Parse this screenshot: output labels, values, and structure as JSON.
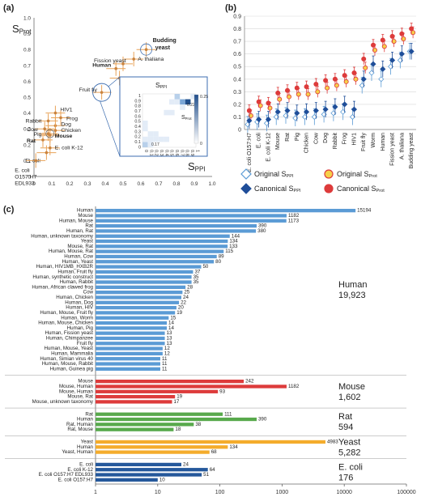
{
  "panel_labels": {
    "a": "(a)",
    "b": "(b)",
    "c": "(c)"
  },
  "colors": {
    "orange": "#e8a257",
    "scatter_point": "#c9833f",
    "blue": "#4d86c6",
    "red": "#dd3b3b",
    "green": "#58a94c",
    "yellow": "#f4ac2c",
    "navy": "#25589b",
    "light_blue": "#5b9bd5",
    "heat": [
      "#ffffff",
      "#e3ecf7",
      "#b8d0ea",
      "#7aa6d6",
      "#3e78bc",
      "#1f4e8c"
    ]
  },
  "chart_data": [
    {
      "id": "a",
      "type": "scatter",
      "xlabel": "S",
      "xlabel_sub": "PPI",
      "ylabel": "S",
      "ylabel_sub": "Prot",
      "xlim": [
        0,
        1.0
      ],
      "ylim": [
        0,
        1.0
      ],
      "xticks": [
        "0",
        "0.1",
        "0.2",
        "0.3",
        "0.4",
        "0.5",
        "0.6",
        "0.7",
        "0.8",
        "0.9",
        "1.0"
      ],
      "yticks": [
        "0",
        "0.1",
        "0.2",
        "0.3",
        "0.4",
        "0.5",
        "0.6",
        "0.7",
        "0.8",
        "0.9",
        "1.0"
      ],
      "points": [
        {
          "label": "Budding yeast",
          "x": 0.63,
          "y": 0.8,
          "bold": true
        },
        {
          "label": "A. thaliana",
          "x": 0.56,
          "y": 0.74,
          "bold": false
        },
        {
          "label": "Fission yeast",
          "x": 0.5,
          "y": 0.71,
          "bold": false
        },
        {
          "label": "Human",
          "x": 0.46,
          "y": 0.68,
          "bold": true
        },
        {
          "label": "Worm",
          "x": 0.48,
          "y": 0.62,
          "bold": false
        },
        {
          "label": "Fruit fly",
          "x": 0.38,
          "y": 0.53,
          "bold": false
        },
        {
          "label": "HIV1",
          "x": 0.12,
          "y": 0.4,
          "bold": false
        },
        {
          "label": "Frog",
          "x": 0.15,
          "y": 0.37,
          "bold": false
        },
        {
          "label": "Rabbit",
          "x": 0.08,
          "y": 0.35,
          "bold": false
        },
        {
          "label": "Dog",
          "x": 0.12,
          "y": 0.32,
          "bold": false
        },
        {
          "label": "Chicken",
          "x": 0.12,
          "y": 0.29,
          "bold": false
        },
        {
          "label": "Cow",
          "x": 0.06,
          "y": 0.3,
          "bold": false
        },
        {
          "label": "Mouse",
          "x": 0.09,
          "y": 0.26,
          "bold": true
        },
        {
          "label": "Pig",
          "x": 0.08,
          "y": 0.27,
          "bold": false
        },
        {
          "label": "Rat",
          "x": 0.05,
          "y": 0.23,
          "bold": true
        },
        {
          "label": "E. coli K-12",
          "x": 0.09,
          "y": 0.18,
          "bold": false
        },
        {
          "label": "E. coli",
          "x": 0.07,
          "y": 0.15,
          "bold": false
        },
        {
          "label": "E. coli O157:H7 EDL933",
          "x": 0.01,
          "y": 0.1,
          "bold": false
        }
      ],
      "inset": {
        "title": "S",
        "title_sub": "PPI",
        "side_label": "S",
        "side_label_sub": "Prot",
        "axis_ticks": [
          "0",
          "0.1",
          "0.2",
          "0.3",
          "0.4",
          "0.5",
          "0.6",
          "0.7",
          "0.8",
          "0.9",
          "1"
        ],
        "colorbar_max": "0.25",
        "colorbar_min": "0",
        "annot_a": "0.22",
        "annot_b": "0.17"
      }
    },
    {
      "id": "b",
      "type": "scatter",
      "ylim": [
        0,
        0.9
      ],
      "yticks": [
        "0",
        "0.1",
        "0.2",
        "0.3",
        "0.4",
        "0.5",
        "0.6",
        "0.7",
        "0.8",
        "0.9"
      ],
      "categories": [
        "E. coli O157:H7",
        "E. coli",
        "E. coli K-12",
        "Mouse",
        "Rat",
        "Pig",
        "Chicken",
        "Cow",
        "Dog",
        "Rabbit",
        "Frog",
        "HIV1",
        "Fruit fly",
        "Worm",
        "Human",
        "Fission yeast",
        "A. thaliana",
        "Budding yeast"
      ],
      "series": [
        {
          "name": "Original S",
          "name_sub": "PPI",
          "values": [
            0.04,
            0.06,
            0.05,
            0.1,
            0.11,
            0.09,
            0.1,
            0.1,
            0.12,
            0.13,
            0.14,
            0.1,
            0.35,
            0.45,
            0.4,
            0.5,
            0.55,
            0.62
          ]
        },
        {
          "name": "Original S",
          "name_sub": "Prot",
          "values": [
            0.11,
            0.19,
            0.17,
            0.24,
            0.26,
            0.28,
            0.28,
            0.3,
            0.33,
            0.35,
            0.38,
            0.4,
            0.49,
            0.63,
            0.66,
            0.7,
            0.72,
            0.77
          ]
        },
        {
          "name": "Canonical S",
          "name_sub": "PPI",
          "values": [
            0.07,
            0.08,
            0.08,
            0.14,
            0.15,
            0.13,
            0.14,
            0.15,
            0.16,
            0.18,
            0.2,
            0.16,
            0.4,
            0.52,
            0.48,
            0.55,
            0.6,
            0.62
          ]
        },
        {
          "name": "Canonical S",
          "name_sub": "Prot",
          "values": [
            0.15,
            0.22,
            0.21,
            0.29,
            0.31,
            0.33,
            0.34,
            0.36,
            0.39,
            0.4,
            0.43,
            0.45,
            0.56,
            0.67,
            0.71,
            0.74,
            0.76,
            0.8
          ]
        }
      ]
    },
    {
      "id": "c",
      "type": "bar",
      "scale": "log",
      "xlim": [
        1,
        100000
      ],
      "xticks": [
        "1",
        "10",
        "100",
        "1000",
        "10000",
        "100000"
      ],
      "groups": [
        {
          "name": "Human",
          "total": "19,923",
          "color": "#5b9bd5",
          "bars": [
            [
              "Human",
              15194
            ],
            [
              "Mouse",
              1182
            ],
            [
              "Human, Mouse",
              1173
            ],
            [
              "Rat",
              390
            ],
            [
              "Human, Rat",
              380
            ],
            [
              "Human, unknown taxonomy",
              144
            ],
            [
              "Yeast",
              134
            ],
            [
              "Mouse, Rat",
              133
            ],
            [
              "Human, Mouse, Rat",
              115
            ],
            [
              "Human, Cow",
              89
            ],
            [
              "Human, Yeast",
              80
            ],
            [
              "Human, HIV1MB_HXB2R",
              50
            ],
            [
              "Human, Fruit fly",
              37
            ],
            [
              "Human, synthetic construct",
              35
            ],
            [
              "Human, Rabbit",
              35
            ],
            [
              "Human, African clawed frog",
              28
            ],
            [
              "Cow",
              25
            ],
            [
              "Human, Chicken",
              24
            ],
            [
              "Human, Dog",
              22
            ],
            [
              "Human, HIV",
              20
            ],
            [
              "Human, Mouse, Fruit fly",
              19
            ],
            [
              "Human, Worm",
              15
            ],
            [
              "Human, Mouse, Chicken",
              14
            ],
            [
              "Human, Pig",
              14
            ],
            [
              "Human, Fission yeast",
              13
            ],
            [
              "Human, Chimpanzee",
              13
            ],
            [
              "Fruit fly",
              13
            ],
            [
              "Human, Mouse, Yeast",
              12
            ],
            [
              "Human, Mammalia",
              12
            ],
            [
              "Human, Simian virus 40",
              11
            ],
            [
              "Human, Mouse, Rabbit",
              11
            ],
            [
              "Human, Guinea pig",
              11
            ]
          ]
        },
        {
          "name": "Mouse",
          "total": "1,602",
          "color": "#dd3b3b",
          "bars": [
            [
              "Mouse",
              242
            ],
            [
              "Mouse, Human",
              1182
            ],
            [
              "Mouse, Human",
              93
            ],
            [
              "Mouse, Rat",
              19
            ],
            [
              "Mouse, unknown taxonomy",
              17
            ]
          ]
        },
        {
          "name": "Rat",
          "total": "594",
          "color": "#58a94c",
          "bars": [
            [
              "Rat",
              111
            ],
            [
              "Human",
              390
            ],
            [
              "Rat, Human",
              38
            ],
            [
              "Rat, Mouse",
              18
            ]
          ]
        },
        {
          "name": "Yeast",
          "total": "5,282",
          "color": "#f4ac2c",
          "bars": [
            [
              "Yeast",
              4983
            ],
            [
              "Human",
              134
            ],
            [
              "Yeast, Human",
              68
            ]
          ]
        },
        {
          "name": "E. coli",
          "total": "176",
          "color": "#25589b",
          "bars": [
            [
              "E. coli",
              24
            ],
            [
              "E. coli K-12",
              64
            ],
            [
              "E. coli O157:H7 EDL933",
              51
            ],
            [
              "E. coli O157:H7",
              10
            ]
          ]
        }
      ]
    }
  ]
}
